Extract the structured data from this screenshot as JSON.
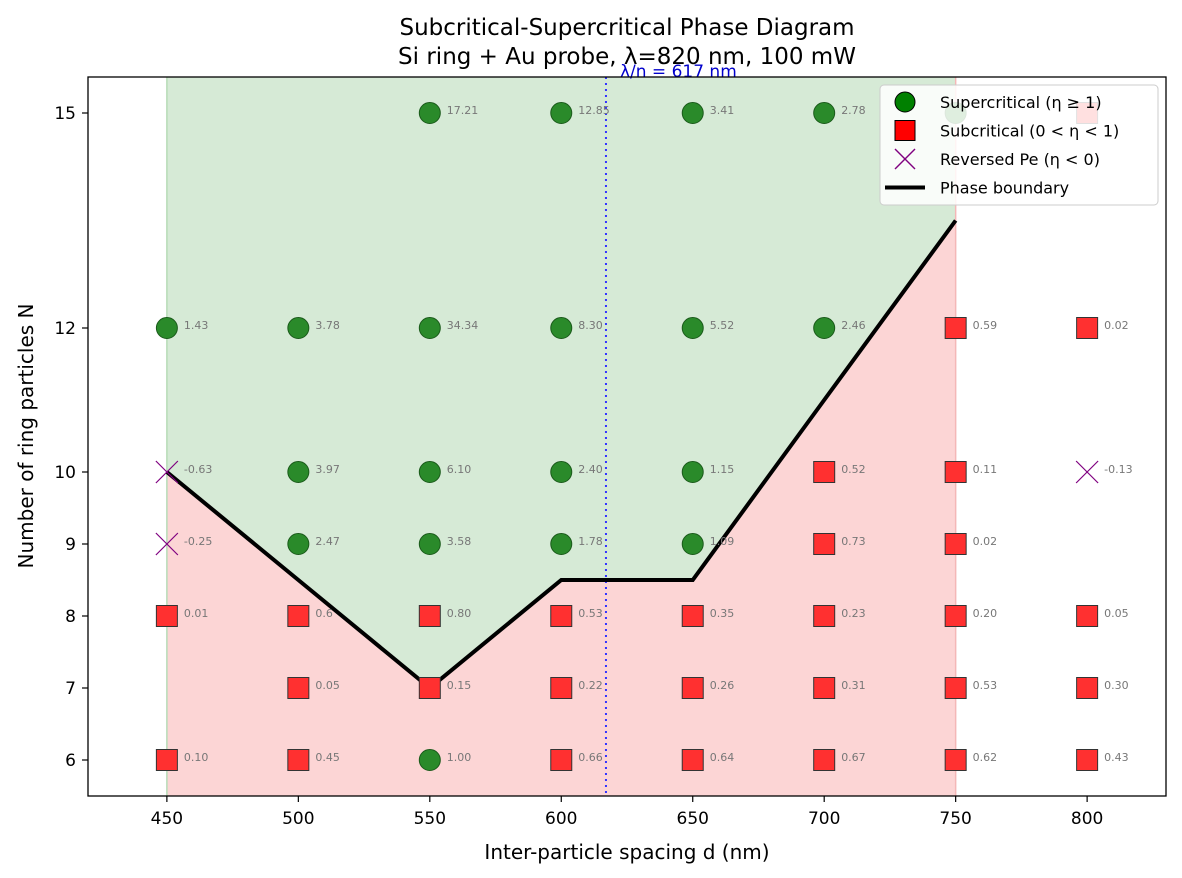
{
  "chart_data": {
    "type": "scatter",
    "title": [
      "Subcritical-Supercritical Phase Diagram",
      "Si ring + Au probe, λ=820 nm, 100 mW"
    ],
    "xlabel": "Inter-particle spacing d (nm)",
    "ylabel": "Number of ring particles N",
    "xlim": [
      420,
      830
    ],
    "ylim": [
      5.5,
      15.5
    ],
    "xticks": [
      450,
      500,
      550,
      600,
      650,
      700,
      750,
      800
    ],
    "yticks": [
      6,
      7,
      8,
      9,
      10,
      12,
      15
    ],
    "y_scale": "nonlinear (N mapped to a hand-spaced axis)",
    "grid": false,
    "legend": {
      "placement": "top-right",
      "entries": [
        {
          "label": "Supercritical (η ≥ 1)",
          "marker": "circle",
          "color": "#008000"
        },
        {
          "label": "Subcritical (0 < η < 1)",
          "marker": "square",
          "color": "#ff0000"
        },
        {
          "label": "Reversed Pe (η < 0)",
          "marker": "x",
          "color": "#800080"
        },
        {
          "label": "Phase boundary",
          "marker": "line",
          "color": "#000000"
        }
      ]
    },
    "vline": {
      "x": 617,
      "label": "λ/n = 617 nm",
      "color": "#3333ff"
    },
    "phase_boundary": {
      "x": [
        450,
        500,
        550,
        600,
        650,
        700,
        750
      ],
      "y": [
        10,
        8.5,
        7,
        8.5,
        8.5,
        11,
        13.5
      ]
    },
    "regions": [
      {
        "name": "supercritical",
        "color": "#d6ead6"
      },
      {
        "name": "subcritical",
        "color": "#fcd5d5"
      }
    ],
    "points": [
      {
        "x": 450,
        "y": 15,
        "eta": null
      },
      {
        "x": 450,
        "y": 12,
        "eta": 1.43
      },
      {
        "x": 450,
        "y": 10,
        "eta": -0.63
      },
      {
        "x": 450,
        "y": 9,
        "eta": -0.25
      },
      {
        "x": 450,
        "y": 8,
        "eta": 0.01
      },
      {
        "x": 450,
        "y": 6,
        "eta": 0.1
      },
      {
        "x": 500,
        "y": 12,
        "eta": 3.78
      },
      {
        "x": 500,
        "y": 10,
        "eta": 3.97
      },
      {
        "x": 500,
        "y": 9,
        "eta": 2.47
      },
      {
        "x": 500,
        "y": 8,
        "eta": 0.6
      },
      {
        "x": 500,
        "y": 7,
        "eta": 0.05
      },
      {
        "x": 500,
        "y": 6,
        "eta": 0.45
      },
      {
        "x": 550,
        "y": 15,
        "eta": 17.21
      },
      {
        "x": 550,
        "y": 12,
        "eta": 34.34
      },
      {
        "x": 550,
        "y": 10,
        "eta": 6.1
      },
      {
        "x": 550,
        "y": 9,
        "eta": 3.58
      },
      {
        "x": 550,
        "y": 8,
        "eta": 0.8
      },
      {
        "x": 550,
        "y": 7,
        "eta": 0.15
      },
      {
        "x": 550,
        "y": 6,
        "eta": 1.0
      },
      {
        "x": 600,
        "y": 15,
        "eta": 12.85
      },
      {
        "x": 600,
        "y": 12,
        "eta": 8.3
      },
      {
        "x": 600,
        "y": 10,
        "eta": 2.4
      },
      {
        "x": 600,
        "y": 9,
        "eta": 1.78
      },
      {
        "x": 600,
        "y": 8,
        "eta": 0.53
      },
      {
        "x": 600,
        "y": 7,
        "eta": 0.22
      },
      {
        "x": 600,
        "y": 6,
        "eta": 0.66
      },
      {
        "x": 650,
        "y": 15,
        "eta": 3.41
      },
      {
        "x": 650,
        "y": 12,
        "eta": 5.52
      },
      {
        "x": 650,
        "y": 10,
        "eta": 1.15
      },
      {
        "x": 650,
        "y": 9,
        "eta": 1.09
      },
      {
        "x": 650,
        "y": 8,
        "eta": 0.35
      },
      {
        "x": 650,
        "y": 7,
        "eta": 0.26
      },
      {
        "x": 650,
        "y": 6,
        "eta": 0.64
      },
      {
        "x": 700,
        "y": 15,
        "eta": 2.78
      },
      {
        "x": 700,
        "y": 12,
        "eta": 2.46
      },
      {
        "x": 700,
        "y": 10,
        "eta": 0.52
      },
      {
        "x": 700,
        "y": 9,
        "eta": 0.73
      },
      {
        "x": 700,
        "y": 8,
        "eta": 0.23
      },
      {
        "x": 700,
        "y": 7,
        "eta": 0.31
      },
      {
        "x": 700,
        "y": 6,
        "eta": 0.67
      },
      {
        "x": 750,
        "y": 15,
        "eta": 1.5
      },
      {
        "x": 750,
        "y": 12,
        "eta": 0.59
      },
      {
        "x": 750,
        "y": 10,
        "eta": 0.11
      },
      {
        "x": 750,
        "y": 9,
        "eta": 0.02
      },
      {
        "x": 750,
        "y": 8,
        "eta": 0.2
      },
      {
        "x": 750,
        "y": 7,
        "eta": 0.53
      },
      {
        "x": 750,
        "y": 6,
        "eta": 0.62
      },
      {
        "x": 800,
        "y": 15,
        "eta": 0.5
      },
      {
        "x": 800,
        "y": 12,
        "eta": 0.02
      },
      {
        "x": 800,
        "y": 10,
        "eta": -0.13
      },
      {
        "x": 800,
        "y": 8,
        "eta": 0.05
      },
      {
        "x": 800,
        "y": 7,
        "eta": 0.3
      },
      {
        "x": 800,
        "y": 6,
        "eta": 0.43
      }
    ],
    "point_labels": {
      "450,12": "1.43",
      "450,10": "-0.63",
      "450,9": "-0.25",
      "450,8": "0.01",
      "450,6": "0.10",
      "500,12": "3.78",
      "500,10": "3.97",
      "500,9": "2.47",
      "500,8": "0.6",
      "500,7": "0.05",
      "500,6": "0.45",
      "550,15": "17.21",
      "550,12": "34.34",
      "550,10": "6.10",
      "550,9": "3.58",
      "550,8": "0.80",
      "550,7": "0.15",
      "550,6": "1.00",
      "600,15": "12.85",
      "600,12": "8.30",
      "600,10": "2.40",
      "600,9": "1.78",
      "600,8": "0.53",
      "600,7": "0.22",
      "600,6": "0.66",
      "650,15": "3.41",
      "650,12": "5.52",
      "650,10": "1.15",
      "650,9": "1.09",
      "650,8": "0.35",
      "650,7": "0.26",
      "650,6": "0.64",
      "700,15": "2.78",
      "700,12": "2.46",
      "700,10": "0.52",
      "700,9": "0.73",
      "700,8": "0.23",
      "700,7": "0.31",
      "700,6": "0.67",
      "750,12": "0.59",
      "750,10": "0.11",
      "750,9": "0.02",
      "750,8": "0.20",
      "750,7": "0.53",
      "750,6": "0.62",
      "800,12": "0.02",
      "800,10": "-0.13",
      "800,8": "0.05",
      "800,7": "0.30",
      "800,6": "0.43"
    }
  }
}
